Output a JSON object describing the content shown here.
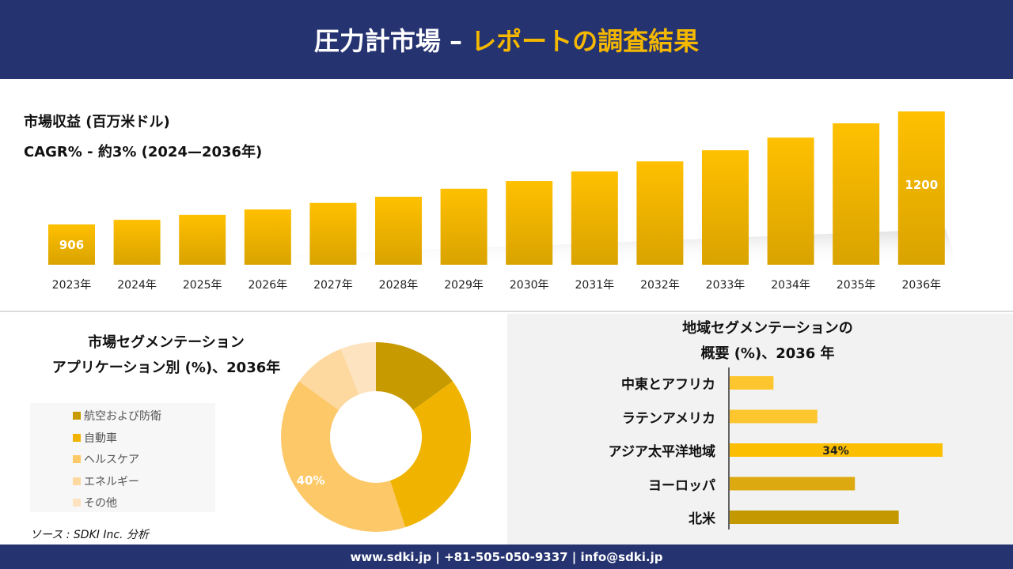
{
  "header": {
    "title_main": "圧力計市場 –",
    "title_accent": "レポートの調査結果"
  },
  "subtitle_1": "市場収益 (百万米ドル)",
  "subtitle_2": "CAGR% - 約3% (2024—2036年)",
  "chart_data": [
    {
      "type": "bar",
      "categories": [
        "2023年",
        "2024年",
        "2025年",
        "2026年",
        "2027年",
        "2028年",
        "2029年",
        "2030年",
        "2031年",
        "2032年",
        "2033年",
        "2034年",
        "2035年",
        "2036年"
      ],
      "values": [
        906,
        918,
        931,
        945,
        962,
        978,
        999,
        1019,
        1044,
        1070,
        1099,
        1132,
        1169,
        1200
      ],
      "data_labels": {
        "0": "906",
        "13": "1200"
      },
      "ylabel": "市場収益 (百万米ドル)",
      "color": "#e6ad00"
    },
    {
      "type": "pie",
      "title": "市場セグメンテーション アプリケーション別 (%)、2036年",
      "title_lines": [
        "市場セグメンテーション",
        "アプリケーション別 (%)、2036年"
      ],
      "categories": [
        "航空および防衛",
        "自動車",
        "ヘルスケア",
        "エネルギー",
        "その他"
      ],
      "values": [
        15,
        30,
        40,
        9,
        6
      ],
      "colors": [
        "#c79a00",
        "#f0b400",
        "#fdc867",
        "#fdd9a0",
        "#fde3bf"
      ],
      "data_labels": {
        "2": "40%"
      },
      "donut": true,
      "legend": "left"
    },
    {
      "type": "bar",
      "orientation": "horizontal",
      "title_lines": [
        "地域セグメンテーションの",
        "概要 (%)、2036 年"
      ],
      "categories": [
        "中東とアフリカ",
        "ラテンアメリカ",
        "アジア太平洋地域",
        "ヨーロッパ",
        "北米"
      ],
      "values": [
        7,
        14,
        34,
        20,
        27
      ],
      "colors": [
        "#fdc52e",
        "#fdc52e",
        "#fbbe00",
        "#dcaa10",
        "#c39800"
      ],
      "data_labels": {
        "2": "34%"
      }
    }
  ],
  "source": "ソース : SDKI Inc. 分析",
  "footer": "www.sdki.jp | +81-505-050-9337 | info@sdki.jp"
}
